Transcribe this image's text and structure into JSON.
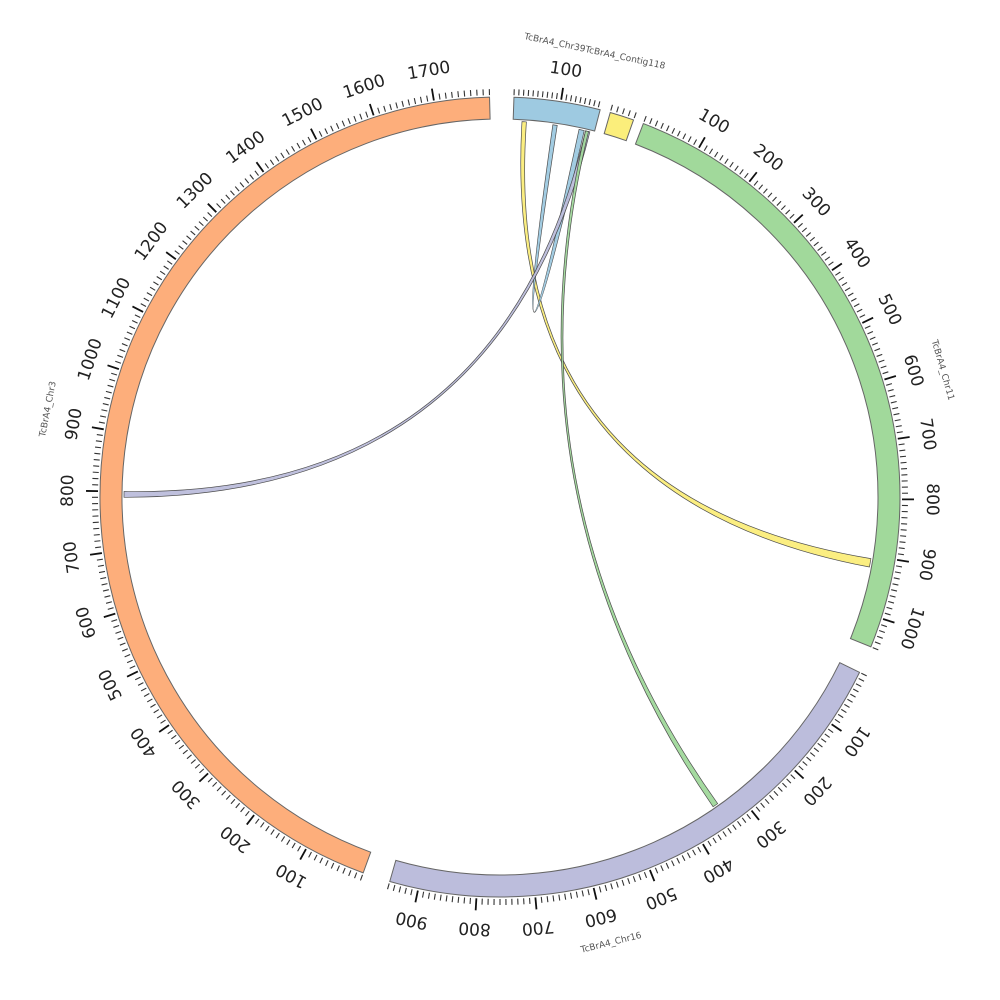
{
  "chart_data": {
    "type": "chord",
    "chromosomes": [
      {
        "id": "TcBrA4_Chr39",
        "label": "TcBrA4_Chr39",
        "length": 185,
        "color": "#9ecae1",
        "start_angle": 2,
        "end_angle": 14.5,
        "tick_labels": [
          "100"
        ],
        "label_text": "TcBrA4_Chr39TcBrA4_Contig118"
      },
      {
        "id": "TcBrA4_Contig118",
        "label": "TcBrA4_Contig118",
        "length": 40,
        "color": "#fbee7b",
        "start_angle": 16,
        "end_angle": 19.5,
        "tick_labels": [],
        "label_text": ""
      },
      {
        "id": "TcBrA4_Chr11",
        "label": "TcBrA4_Chr11",
        "length": 1050,
        "color": "#a1d99b",
        "start_angle": 21,
        "end_angle": 112,
        "tick_labels": [
          "100",
          "200",
          "300",
          "400",
          "500",
          "600",
          "700",
          "800",
          "900",
          "1000"
        ],
        "label_text": "TcBrA4_Chr11"
      },
      {
        "id": "TcBrA4_Chr16",
        "label": "TcBrA4_Chr16",
        "length": 950,
        "color": "#bcbddc",
        "start_angle": 116,
        "end_angle": 196,
        "tick_labels": [
          "100",
          "200",
          "300",
          "400",
          "500",
          "600",
          "700",
          "800",
          "900"
        ],
        "label_text": "TcBrA4_Chr16"
      },
      {
        "id": "TcBrA4_Chr3",
        "label": "TcBrA4_Chr3",
        "length": 1790,
        "color": "#fdae7b",
        "start_angle": 200,
        "end_angle": 358.5,
        "tick_labels": [
          "100",
          "200",
          "300",
          "400",
          "500",
          "600",
          "700",
          "800",
          "900",
          "1000",
          "1100",
          "1200",
          "1300",
          "1400",
          "1500",
          "1600",
          "1700"
        ],
        "label_text": "TcBrA4_Chr3"
      }
    ],
    "links": [
      {
        "source": "TcBrA4_Chr39",
        "source_range": [
          20,
          30
        ],
        "target": "TcBrA4_Chr11",
        "target_range": [
          905,
          920
        ],
        "color": "#fbee7b"
      },
      {
        "source": "TcBrA4_Chr39",
        "source_range": [
          90,
          100
        ],
        "target": "TcBrA4_Chr39",
        "target_range": [
          150,
          162
        ],
        "color": "#9ecae1"
      },
      {
        "source": "TcBrA4_Chr39",
        "source_range": [
          165,
          175
        ],
        "target": "TcBrA4_Chr3",
        "target_range": [
          790,
          800
        ],
        "color": "#bcbddc"
      },
      {
        "source": "TcBrA4_Chr39",
        "source_range": [
          165,
          172
        ],
        "target": "TcBrA4_Chr16",
        "target_range": [
          340,
          350
        ],
        "color": "#a1d99b"
      }
    ]
  }
}
